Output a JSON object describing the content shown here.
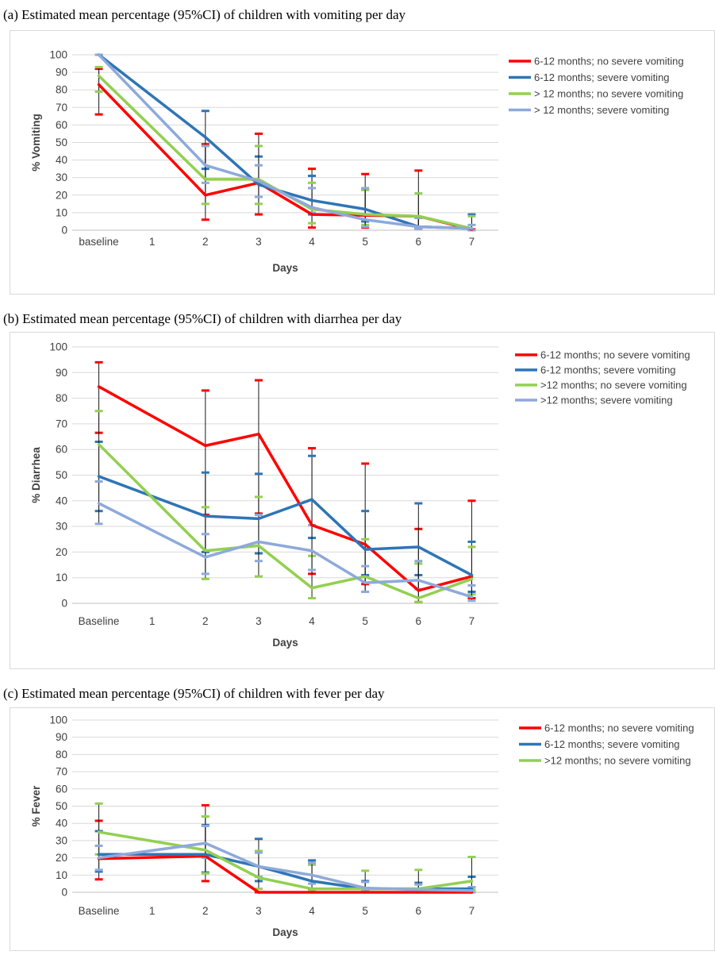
{
  "captions": {
    "a": "(a) Estimated mean percentage (95%CI) of children with vomiting per day",
    "b": "(b) Estimated mean percentage (95%CI) of children with diarrhea per day",
    "c": "(c) Estimated mean percentage (95%CI) of children with fever per day"
  },
  "chart_data": [
    {
      "type": "line",
      "title": "(a) Estimated mean percentage (95%CI) of children with vomiting per day",
      "xlabel": "Days",
      "ylabel": "% Vomiting",
      "ylim": [
        0,
        100
      ],
      "yticks": [
        0,
        10,
        20,
        30,
        40,
        50,
        60,
        70,
        80,
        90,
        100
      ],
      "categories": [
        "baseline",
        "1",
        "2",
        "3",
        "4",
        "5",
        "6",
        "7"
      ],
      "legend_position": "top-right",
      "series": [
        {
          "name": "6-12 months; no severe vomiting",
          "color": "#ff0000",
          "points": [
            [
              0,
              83,
              66,
              92
            ],
            [
              2,
              20,
              6,
              49
            ],
            [
              3,
              27,
              9,
              55
            ],
            [
              4,
              9,
              1.5,
              35
            ],
            [
              5,
              8.5,
              1.5,
              32
            ],
            [
              6,
              8,
              1,
              34
            ],
            [
              7,
              0.5,
              0,
              0.5
            ]
          ]
        },
        {
          "name": "6-12 months; severe vomiting",
          "color": "#2e75b6",
          "points": [
            [
              0,
              100,
              100,
              100
            ],
            [
              2,
              53,
              35,
              68
            ],
            [
              3,
              26,
              19,
              42
            ],
            [
              4,
              17,
              9,
              31
            ],
            [
              5,
              12,
              5,
              23
            ],
            [
              6,
              2,
              1,
              7
            ],
            [
              7,
              1,
              0,
              9
            ]
          ]
        },
        {
          "name": "> 12 months; no severe vomiting",
          "color": "#92d050",
          "points": [
            [
              0,
              88,
              79,
              93
            ],
            [
              2,
              29,
              15,
              48
            ],
            [
              3,
              29,
              15,
              48
            ],
            [
              4,
              12,
              4,
              27
            ],
            [
              5,
              9,
              3,
              23
            ],
            [
              6,
              8,
              2,
              21
            ],
            [
              7,
              1,
              0,
              8
            ]
          ]
        },
        {
          "name": "> 12 months; severe vomiting",
          "color": "#8ea9db",
          "points": [
            [
              0,
              100,
              100,
              100
            ],
            [
              2,
              37,
              27,
              48
            ],
            [
              3,
              28,
              19,
              37
            ],
            [
              4,
              13,
              10,
              24
            ],
            [
              5,
              6,
              2,
              24
            ],
            [
              6,
              2,
              1,
              7
            ],
            [
              7,
              1,
              0,
              3
            ]
          ]
        }
      ]
    },
    {
      "type": "line",
      "title": "(b) Estimated mean percentage (95%CI) of children with diarrhea per day",
      "xlabel": "Days",
      "ylabel": "% Diarrhea",
      "ylim": [
        0,
        100
      ],
      "yticks": [
        0,
        10,
        20,
        30,
        40,
        50,
        60,
        70,
        80,
        90,
        100
      ],
      "categories": [
        "Baseline",
        "1",
        "2",
        "3",
        "4",
        "5",
        "6",
        "7"
      ],
      "legend_position": "top-right",
      "series": [
        {
          "name": "6-12 months; no severe vomiting",
          "color": "#ff0000",
          "points": [
            [
              0,
              84.5,
              66.5,
              94
            ],
            [
              2,
              61.5,
              34.5,
              83
            ],
            [
              3,
              66,
              35,
              87
            ],
            [
              4,
              30.5,
              11.5,
              60.5
            ],
            [
              5,
              23,
              7.5,
              54.5
            ],
            [
              6,
              5,
              0.5,
              29
            ],
            [
              7,
              10.5,
              2,
              40
            ]
          ]
        },
        {
          "name": "6-12 months; severe vomiting",
          "color": "#2e75b6",
          "points": [
            [
              0,
              49.5,
              36,
              63
            ],
            [
              2,
              34,
              20,
              51
            ],
            [
              3,
              33,
              19.5,
              50.5
            ],
            [
              4,
              40.5,
              25.5,
              57.5
            ],
            [
              5,
              21,
              11,
              36
            ],
            [
              6,
              22,
              11,
              39
            ],
            [
              7,
              11,
              4.5,
              24
            ]
          ]
        },
        {
          "name": ">12 months; no severe vomiting",
          "color": "#92d050",
          "points": [
            [
              0,
              62,
              47.5,
              75
            ],
            [
              2,
              20.5,
              9.5,
              37.5
            ],
            [
              3,
              22.5,
              10.5,
              41.5
            ],
            [
              4,
              6,
              2,
              18.5
            ],
            [
              5,
              10.5,
              4.5,
              25
            ],
            [
              6,
              2,
              0.5,
              15.5
            ],
            [
              7,
              9.5,
              3.5,
              22
            ]
          ]
        },
        {
          "name": ">12 months; severe vomiting",
          "color": "#8ea9db",
          "points": [
            [
              0,
              39,
              31,
              47.5
            ],
            [
              2,
              18,
              11.5,
              27
            ],
            [
              3,
              24,
              16.5,
              34.5
            ],
            [
              4,
              20.5,
              13,
              30.5
            ],
            [
              5,
              8,
              4.5,
              14.5
            ],
            [
              6,
              9,
              5.5,
              16.5
            ],
            [
              7,
              2.5,
              1,
              7
            ]
          ]
        }
      ]
    },
    {
      "type": "line",
      "title": "(c) Estimated mean percentage (95%CI) of children with fever per day",
      "xlabel": "Days",
      "ylabel": "% Fever",
      "ylim": [
        0,
        100
      ],
      "yticks": [
        0,
        10,
        20,
        30,
        40,
        50,
        60,
        70,
        80,
        90,
        100
      ],
      "categories": [
        "Baseline",
        "1",
        "2",
        "3",
        "4",
        "5",
        "6",
        "7"
      ],
      "legend_position": "top-right",
      "series": [
        {
          "name": "6-12 months; no severe vomiting",
          "color": "#ff0000",
          "points": [
            [
              0,
              19.5,
              7.5,
              41.5
            ],
            [
              2,
              21,
              6.5,
              50.5
            ],
            [
              3,
              0,
              0,
              0
            ],
            [
              4,
              0,
              0,
              0
            ],
            [
              5,
              0,
              0,
              0
            ],
            [
              6,
              0,
              0,
              0
            ],
            [
              7,
              0,
              0,
              0
            ]
          ]
        },
        {
          "name": "6-12 months; severe vomiting",
          "color": "#2e75b6",
          "points": [
            [
              0,
              22,
              12,
              35.5
            ],
            [
              2,
              22,
              11.5,
              39
            ],
            [
              3,
              15,
              6.5,
              31
            ],
            [
              4,
              6.5,
              2,
              18.5
            ],
            [
              5,
              2,
              0.5,
              6.5
            ],
            [
              6,
              2,
              0.5,
              5.5
            ],
            [
              7,
              2,
              0,
              9
            ]
          ]
        },
        {
          "name": ">12 months; no severe vomiting",
          "color": "#92d050",
          "points": [
            [
              0,
              35,
              22,
              51.5
            ],
            [
              2,
              24.5,
              11,
              44
            ],
            [
              3,
              8.5,
              2,
              24
            ],
            [
              4,
              2,
              0.5,
              16
            ],
            [
              5,
              2,
              0.5,
              12.5
            ],
            [
              6,
              2,
              0.5,
              13
            ],
            [
              7,
              6.5,
              1.5,
              20.5
            ]
          ]
        },
        {
          "name": "",
          "color": "#8ea9db",
          "points": [
            [
              0,
              20,
              13,
              27
            ],
            [
              2,
              28.5,
              20,
              38.5
            ],
            [
              3,
              15,
              9,
              23
            ],
            [
              4,
              10,
              5,
              17
            ],
            [
              5,
              2.5,
              1,
              6
            ],
            [
              6,
              1.5,
              0.5,
              4.5
            ],
            [
              7,
              1,
              0,
              3
            ]
          ]
        }
      ]
    }
  ]
}
